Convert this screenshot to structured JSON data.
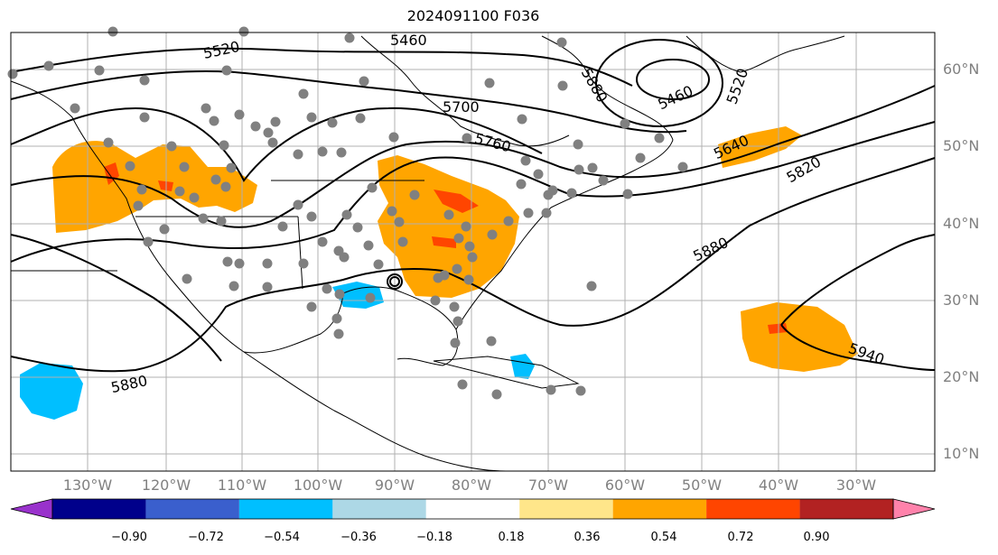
{
  "title": "2024091100 F036",
  "map": {
    "lat_labels": [
      "60°N",
      "50°N",
      "40°N",
      "30°N",
      "20°N",
      "10°N"
    ],
    "lon_labels": [
      "130°W",
      "120°W",
      "110°W",
      "100°W",
      "90°W",
      "80°W",
      "70°W",
      "60°W",
      "50°W",
      "40°W",
      "30°W"
    ],
    "contour_labels": [
      "5520",
      "5460",
      "5700",
      "5760",
      "5880",
      "5460",
      "5520",
      "5640",
      "5820",
      "5880",
      "5940",
      "5880"
    ],
    "colors": {
      "coast": "#000000",
      "grid": "#b0b0b0",
      "station": "#808080",
      "contour": "#000000",
      "shade_orange": "#ffa500",
      "shade_red": "#ff4500",
      "shade_lightblue": "#00bfff"
    }
  },
  "colorbar": {
    "ticks": [
      "−0.90",
      "−0.72",
      "−0.54",
      "−0.36",
      "−0.18",
      "0.18",
      "0.36",
      "0.54",
      "0.72",
      "0.90"
    ],
    "colors": [
      "#9932cc",
      "#00008b",
      "#3a5fcd",
      "#00bfff",
      "#add8e6",
      "#ffffff",
      "#ffe68a",
      "#ffa500",
      "#ff4500",
      "#b22222",
      "#ff82ab"
    ]
  }
}
